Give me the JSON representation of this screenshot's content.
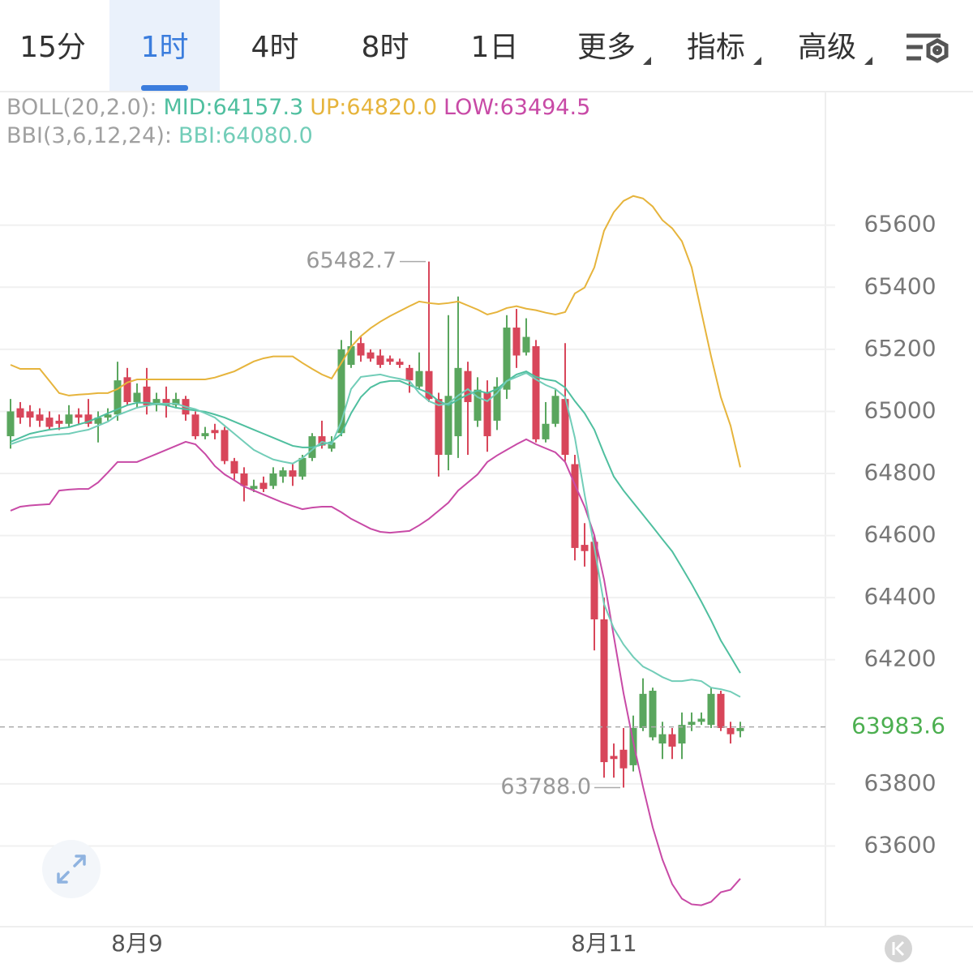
{
  "tabs": [
    "15分",
    "1时",
    "4时",
    "8时",
    "1日",
    "更多",
    "指标",
    "高级"
  ],
  "active_tab": 1,
  "chart_data": {
    "type": "candlestick",
    "indicators": [
      "BOLL(20,2.0):",
      "BBI(3,6,12,24):"
    ],
    "categories": [
      null,
      null,
      null,
      null,
      null,
      null,
      null,
      null,
      null,
      null,
      null,
      null,
      null,
      "8月9",
      null,
      null,
      null,
      null,
      null,
      null,
      null,
      null,
      null,
      null,
      null,
      null,
      null,
      null,
      null,
      null,
      null,
      null,
      null,
      null,
      null,
      null,
      null,
      null,
      null,
      null,
      null,
      null,
      null,
      null,
      null,
      null,
      null,
      null,
      null,
      null,
      null,
      null,
      null,
      null,
      null,
      null,
      null,
      null,
      null,
      null,
      null,
      "8月11",
      null,
      null,
      null,
      null,
      null,
      null,
      null,
      null,
      null,
      null,
      null,
      null,
      null,
      null
    ],
    "open": [
      64920,
      65010,
      65000,
      64990,
      64980,
      64970,
      64960,
      64990,
      64990,
      64960,
      64980,
      64990,
      65110,
      65030,
      65080,
      65020,
      65040,
      65020,
      65040,
      64990,
      64920,
      64940,
      64940,
      64840,
      64800,
      64750,
      64770,
      64760,
      64790,
      64810,
      64790,
      64850,
      64920,
      64880,
      64930,
      65150,
      65220,
      65190,
      65180,
      65170,
      65160,
      65140,
      65080,
      65130,
      65040,
      64860,
      64920,
      65130,
      64970,
      65060,
      64970,
      65070,
      65270,
      65190,
      65210,
      64910,
      64960,
      65040,
      64830,
      64570,
      64580,
      64330,
      63890,
      63910,
      63860,
      63980,
      63950,
      63930,
      63960,
      63930,
      63990,
      64000,
      63990,
      64090,
      63980,
      63970
    ],
    "high": [
      65040,
      65030,
      65020,
      65010,
      65000,
      64990,
      65020,
      65010,
      65040,
      65000,
      65010,
      65160,
      65140,
      65090,
      65140,
      65060,
      65080,
      65060,
      65050,
      65000,
      64950,
      64960,
      64950,
      64850,
      64820,
      64780,
      64790,
      64820,
      64820,
      64830,
      64860,
      64930,
      64970,
      64920,
      65230,
      65260,
      65240,
      65200,
      65200,
      65180,
      65170,
      65150,
      65190,
      65482.7,
      65060,
      65310,
      65370,
      65160,
      65110,
      65100,
      65110,
      65310,
      65330,
      65300,
      65230,
      65030,
      65070,
      65220,
      64860,
      64640,
      64600,
      64400,
      63930,
      63980,
      64020,
      64140,
      64110,
      64000,
      63980,
      64030,
      64030,
      64030,
      64110,
      64100,
      64000,
      64000
    ],
    "low": [
      64880,
      64960,
      64950,
      64950,
      64940,
      64940,
      64950,
      64960,
      64950,
      64900,
      64970,
      64970,
      65020,
      65010,
      64990,
      65000,
      64980,
      65010,
      64970,
      64910,
      64910,
      64910,
      64830,
      64780,
      64710,
      64740,
      64740,
      64750,
      64770,
      64760,
      64780,
      64840,
      64880,
      64870,
      64920,
      65140,
      65160,
      65160,
      65140,
      65150,
      65140,
      65060,
      65070,
      65030,
      64790,
      64810,
      64850,
      64860,
      64950,
      64870,
      64940,
      65040,
      65140,
      65180,
      64900,
      64900,
      64950,
      64840,
      64520,
      64500,
      64230,
      63820,
      63820,
      63788,
      63840,
      63970,
      63940,
      63880,
      63880,
      63880,
      63970,
      63990,
      63980,
      63970,
      63930,
      63950
    ],
    "close": [
      65000,
      64980,
      64980,
      64970,
      64950,
      64960,
      64990,
      64980,
      64960,
      64980,
      64990,
      65100,
      65030,
      65060,
      65020,
      65040,
      65020,
      65040,
      64990,
      64920,
      64930,
      64930,
      64840,
      64800,
      64760,
      64760,
      64750,
      64800,
      64810,
      64790,
      64850,
      64920,
      64890,
      64900,
      65200,
      65210,
      65180,
      65170,
      65150,
      65160,
      65150,
      65100,
      65130,
      65040,
      64860,
      65050,
      65140,
      65030,
      65070,
      64920,
      65080,
      65270,
      65180,
      65240,
      64910,
      64960,
      65050,
      64860,
      64560,
      64550,
      64330,
      63870,
      63880,
      63850,
      63980,
      64090,
      64100,
      63960,
      63920,
      63990,
      64000,
      64010,
      64090,
      63980,
      63960,
      63980
    ],
    "up_color": "#5aa65e",
    "down_color": "#d8465a",
    "high_label": "65482.7",
    "low_label": "63788.0",
    "series": [
      {
        "name": "MID:64157.3",
        "indicator": 0,
        "color": "#4fbf9f",
        "values": [
          64902,
          64915,
          64928,
          64935,
          64941,
          64945,
          64949,
          64958,
          64967,
          64980,
          64994,
          65007,
          65020,
          65028,
          65028,
          65024,
          65020,
          65012,
          65007,
          65003,
          64999,
          64990,
          64980,
          64967,
          64954,
          64941,
          64928,
          64915,
          64902,
          64889,
          64884,
          64884,
          64893,
          64902,
          64928,
          64994,
          65046,
          65077,
          65093,
          65098,
          65098,
          65085,
          65072,
          65059,
          65033,
          65020,
          65038,
          65054,
          65067,
          65059,
          65072,
          65098,
          65119,
          65129,
          65111,
          65103,
          65098,
          65077,
          65033,
          64994,
          64941,
          64863,
          64790,
          64745,
          64706,
          64667,
          64628,
          64588,
          64549,
          64497,
          64444,
          64387,
          64327,
          64262,
          64210,
          64157.3
        ]
      },
      {
        "name": "UP:64820.0",
        "indicator": 0,
        "color": "#e6b43c",
        "values": [
          65150,
          65137,
          65137,
          65137,
          65098,
          65059,
          65051,
          65054,
          65056,
          65059,
          65059,
          65072,
          65093,
          65103,
          65103,
          65103,
          65103,
          65103,
          65103,
          65103,
          65103,
          65109,
          65119,
          65129,
          65145,
          65161,
          65171,
          65177,
          65177,
          65177,
          65156,
          65137,
          65119,
          65106,
          65156,
          65208,
          65242,
          65268,
          65289,
          65307,
          65323,
          65339,
          65354,
          65349,
          65346,
          65349,
          65354,
          65341,
          65328,
          65312,
          65320,
          65333,
          65339,
          65331,
          65326,
          65318,
          65312,
          65320,
          65380,
          65399,
          65464,
          65582,
          65642,
          65678,
          65694,
          65686,
          65660,
          65616,
          65590,
          65548,
          65464,
          65320,
          65177,
          65046,
          64954,
          64820
        ]
      },
      {
        "name": "LOW:63494.5",
        "indicator": 0,
        "color": "#c84aa6",
        "values": [
          64680,
          64693,
          64697,
          64699,
          64701,
          64745,
          64748,
          64750,
          64750,
          64771,
          64803,
          64837,
          64837,
          64837,
          64850,
          64863,
          64876,
          64889,
          64902,
          64894,
          64863,
          64824,
          64797,
          64778,
          64758,
          64745,
          64732,
          64719,
          64706,
          64695,
          64685,
          64690,
          64693,
          64693,
          64675,
          64654,
          64638,
          64622,
          64612,
          64609,
          64612,
          64615,
          64633,
          64654,
          64680,
          64706,
          64745,
          64771,
          64797,
          64837,
          64858,
          64876,
          64894,
          64910,
          64894,
          64881,
          64868,
          64837,
          64764,
          64693,
          64601,
          64458,
          64275,
          64092,
          63935,
          63791,
          63660,
          63556,
          63477,
          63430,
          63412,
          63409,
          63420,
          63451,
          63459,
          63494.5
        ]
      },
      {
        "name": "BBI:64080.0",
        "indicator": 1,
        "color": "#72cdb8",
        "values": [
          64894,
          64905,
          64915,
          64919,
          64923,
          64926,
          64928,
          64935,
          64941,
          64954,
          64967,
          64988,
          65000,
          65012,
          65018,
          65025,
          65025,
          65025,
          65015,
          65007,
          64994,
          64980,
          64954,
          64928,
          64902,
          64876,
          64860,
          64845,
          64838,
          64832,
          64850,
          64876,
          64902,
          64894,
          64967,
          65072,
          65111,
          65115,
          65119,
          65111,
          65105,
          65098,
          65059,
          65033,
          65020,
          65025,
          65051,
          65072,
          65046,
          65033,
          65059,
          65098,
          65111,
          65124,
          65103,
          65085,
          65072,
          65046,
          64915,
          64732,
          64562,
          64379,
          64301,
          64249,
          64209,
          64178,
          64162,
          64144,
          64131,
          64131,
          64136,
          64131,
          64110,
          64105,
          64097,
          64080
        ]
      }
    ],
    "last_price": 63983.6,
    "last_price_color": "#4caf50",
    "ylim": [
      63340,
      66025
    ],
    "yticks": [
      65600,
      65400,
      65200,
      65000,
      64800,
      64600,
      64400,
      64200,
      63800,
      63600
    ],
    "grid": true
  }
}
